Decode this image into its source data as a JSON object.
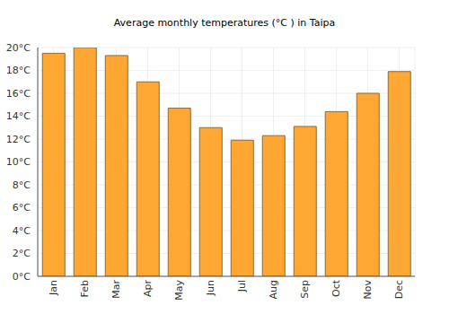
{
  "chart_data": {
    "type": "bar",
    "title": "Average monthly temperatures (°C ) in Taipa",
    "categories": [
      "Jan",
      "Feb",
      "Mar",
      "Apr",
      "May",
      "Jun",
      "Jul",
      "Aug",
      "Sep",
      "Oct",
      "Nov",
      "Dec"
    ],
    "values": [
      19.5,
      20.0,
      19.3,
      17.0,
      14.7,
      13.0,
      11.9,
      12.3,
      13.1,
      14.4,
      16.0,
      17.9
    ],
    "color": "#ffa733",
    "ylim": [
      0,
      20
    ],
    "yticks": [
      {
        "value": 0,
        "label": "0°C"
      },
      {
        "value": 2,
        "label": "2°C"
      },
      {
        "value": 4,
        "label": "4°C"
      },
      {
        "value": 6,
        "label": "6°C"
      },
      {
        "value": 8,
        "label": "8°C"
      },
      {
        "value": 10,
        "label": "10°C"
      },
      {
        "value": 12,
        "label": "12°C"
      },
      {
        "value": 14,
        "label": "14°C"
      },
      {
        "value": 16,
        "label": "16°C"
      },
      {
        "value": 18,
        "label": "18°C"
      },
      {
        "value": 20,
        "label": "20°C"
      }
    ],
    "grid": true
  }
}
